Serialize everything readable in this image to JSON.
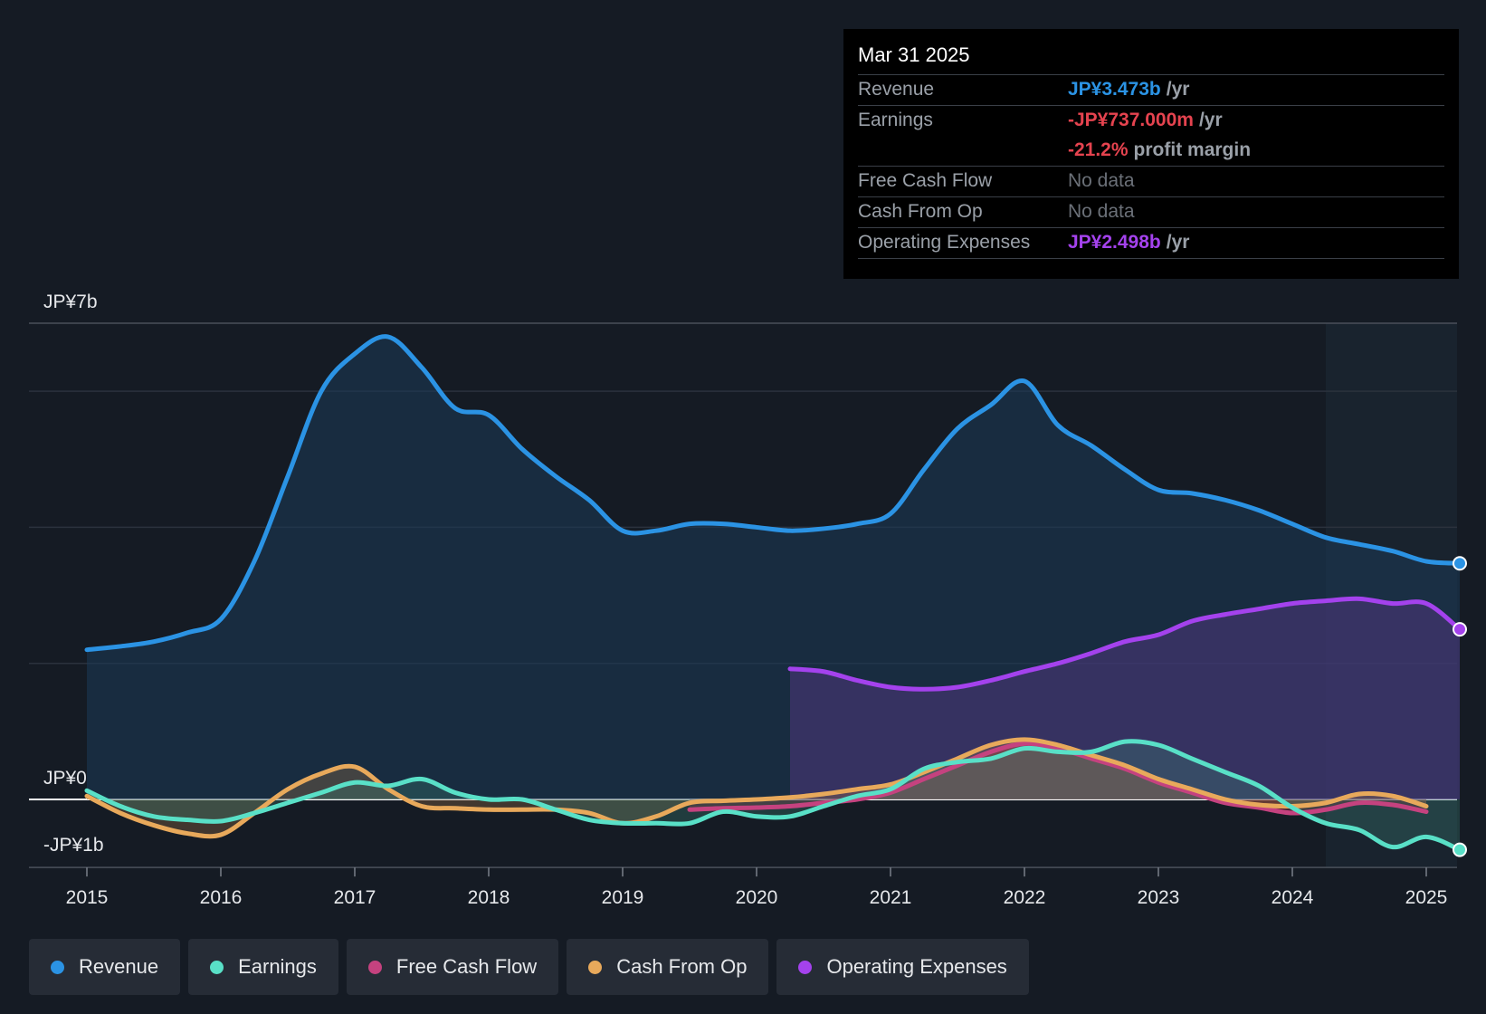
{
  "chart_data": {
    "type": "area",
    "y_axis": {
      "top_label": "JP¥7b",
      "zero_label": "JP¥0",
      "bottom_label": "-JP¥1b",
      "ylim": [
        -1,
        7
      ]
    },
    "x_ticks": [
      "2015",
      "2016",
      "2017",
      "2018",
      "2019",
      "2020",
      "2021",
      "2022",
      "2023",
      "2024",
      "2025"
    ],
    "xlim": [
      2014.57,
      2025.25
    ],
    "series": [
      {
        "name": "Revenue",
        "color": "#2b93e4",
        "x": [
          2015.0,
          2015.25,
          2015.5,
          2015.75,
          2016.0,
          2016.25,
          2016.5,
          2016.75,
          2017.0,
          2017.25,
          2017.5,
          2017.75,
          2018.0,
          2018.25,
          2018.5,
          2018.75,
          2019.0,
          2019.25,
          2019.5,
          2019.75,
          2020.0,
          2020.25,
          2020.5,
          2020.75,
          2021.0,
          2021.25,
          2021.5,
          2021.75,
          2022.0,
          2022.25,
          2022.5,
          2022.75,
          2023.0,
          2023.25,
          2023.5,
          2023.75,
          2024.0,
          2024.25,
          2024.5,
          2024.75,
          2025.0,
          2025.25
        ],
        "values": [
          2.2,
          2.25,
          2.32,
          2.45,
          2.65,
          3.5,
          4.75,
          6.0,
          6.55,
          6.8,
          6.35,
          5.75,
          5.65,
          5.15,
          4.75,
          4.4,
          3.95,
          3.95,
          4.05,
          4.05,
          4.0,
          3.95,
          3.98,
          4.05,
          4.2,
          4.85,
          5.45,
          5.8,
          6.15,
          5.5,
          5.2,
          4.85,
          4.55,
          4.5,
          4.4,
          4.25,
          4.05,
          3.85,
          3.75,
          3.65,
          3.5,
          3.47
        ]
      },
      {
        "name": "Earnings",
        "color": "#59e0c7",
        "x": [
          2015.0,
          2015.25,
          2015.5,
          2015.75,
          2016.0,
          2016.25,
          2016.5,
          2016.75,
          2017.0,
          2017.25,
          2017.5,
          2017.75,
          2018.0,
          2018.25,
          2018.5,
          2018.75,
          2019.0,
          2019.25,
          2019.5,
          2019.75,
          2020.0,
          2020.25,
          2020.5,
          2020.75,
          2021.0,
          2021.25,
          2021.5,
          2021.75,
          2022.0,
          2022.25,
          2022.5,
          2022.75,
          2023.0,
          2023.25,
          2023.5,
          2023.75,
          2024.0,
          2024.25,
          2024.5,
          2024.75,
          2025.0,
          2025.25
        ],
        "values": [
          0.13,
          -0.1,
          -0.25,
          -0.3,
          -0.32,
          -0.2,
          -0.05,
          0.1,
          0.25,
          0.2,
          0.3,
          0.1,
          0.0,
          0.0,
          -0.15,
          -0.3,
          -0.35,
          -0.35,
          -0.35,
          -0.18,
          -0.25,
          -0.25,
          -0.1,
          0.05,
          0.15,
          0.45,
          0.55,
          0.6,
          0.75,
          0.7,
          0.7,
          0.85,
          0.8,
          0.6,
          0.4,
          0.2,
          -0.12,
          -0.35,
          -0.45,
          -0.7,
          -0.55,
          -0.74
        ]
      },
      {
        "name": "Free Cash Flow",
        "color": "#c5427f",
        "x": [
          2019.5,
          2019.75,
          2020.0,
          2020.25,
          2020.5,
          2020.75,
          2021.0,
          2021.25,
          2021.5,
          2021.75,
          2022.0,
          2022.25,
          2022.5,
          2022.75,
          2023.0,
          2023.25,
          2023.5,
          2023.75,
          2024.0,
          2024.25,
          2024.5,
          2024.75,
          2025.0
        ],
        "values": [
          -0.15,
          -0.13,
          -0.12,
          -0.1,
          -0.05,
          0.0,
          0.1,
          0.3,
          0.5,
          0.7,
          0.82,
          0.75,
          0.6,
          0.45,
          0.25,
          0.1,
          -0.05,
          -0.12,
          -0.2,
          -0.15,
          -0.05,
          -0.08,
          -0.18
        ]
      },
      {
        "name": "Cash From Op",
        "color": "#e8a95b",
        "x": [
          2015.0,
          2015.25,
          2015.5,
          2015.75,
          2016.0,
          2016.25,
          2016.5,
          2016.75,
          2017.0,
          2017.25,
          2017.5,
          2017.75,
          2018.0,
          2018.25,
          2018.5,
          2018.75,
          2019.0,
          2019.25,
          2019.5,
          2019.75,
          2020.0,
          2020.25,
          2020.5,
          2020.75,
          2021.0,
          2021.25,
          2021.5,
          2021.75,
          2022.0,
          2022.25,
          2022.5,
          2022.75,
          2023.0,
          2023.25,
          2023.5,
          2023.75,
          2024.0,
          2024.25,
          2024.5,
          2024.75,
          2025.0
        ],
        "values": [
          0.05,
          -0.2,
          -0.38,
          -0.5,
          -0.52,
          -0.2,
          0.15,
          0.38,
          0.48,
          0.15,
          -0.1,
          -0.13,
          -0.15,
          -0.15,
          -0.15,
          -0.2,
          -0.35,
          -0.25,
          -0.05,
          -0.02,
          0.0,
          0.03,
          0.08,
          0.15,
          0.22,
          0.4,
          0.6,
          0.8,
          0.88,
          0.8,
          0.65,
          0.5,
          0.3,
          0.15,
          0.0,
          -0.08,
          -0.1,
          -0.05,
          0.08,
          0.05,
          -0.1
        ]
      },
      {
        "name": "Operating Expenses",
        "color": "#a442ed",
        "x": [
          2020.25,
          2020.5,
          2020.75,
          2021.0,
          2021.25,
          2021.5,
          2021.75,
          2022.0,
          2022.25,
          2022.5,
          2022.75,
          2023.0,
          2023.25,
          2023.5,
          2023.75,
          2024.0,
          2024.25,
          2024.5,
          2024.75,
          2025.0,
          2025.25
        ],
        "values": [
          1.92,
          1.88,
          1.75,
          1.65,
          1.62,
          1.65,
          1.75,
          1.88,
          2.0,
          2.15,
          2.32,
          2.42,
          2.62,
          2.72,
          2.8,
          2.88,
          2.92,
          2.95,
          2.88,
          2.88,
          2.5
        ]
      }
    ],
    "tooltip": {
      "date": "Mar 31 2025",
      "rows": [
        {
          "label": "Revenue",
          "value": "JP¥3.473b",
          "unit": "/yr",
          "color": "#2b93e4"
        },
        {
          "label": "Earnings",
          "value": "-JP¥737.000m",
          "unit": "/yr",
          "color": "#e5434f"
        },
        {
          "label": "",
          "value": "-21.2%",
          "unit": "profit margin",
          "color": "#e5434f"
        },
        {
          "label": "Free Cash Flow",
          "value": "No data",
          "unit": "",
          "color": "#6b7078"
        },
        {
          "label": "Cash From Op",
          "value": "No data",
          "unit": "",
          "color": "#6b7078"
        },
        {
          "label": "Operating Expenses",
          "value": "JP¥2.498b",
          "unit": "/yr",
          "color": "#a442ed"
        }
      ]
    },
    "legend": [
      "Revenue",
      "Earnings",
      "Free Cash Flow",
      "Cash From Op",
      "Operating Expenses"
    ]
  }
}
